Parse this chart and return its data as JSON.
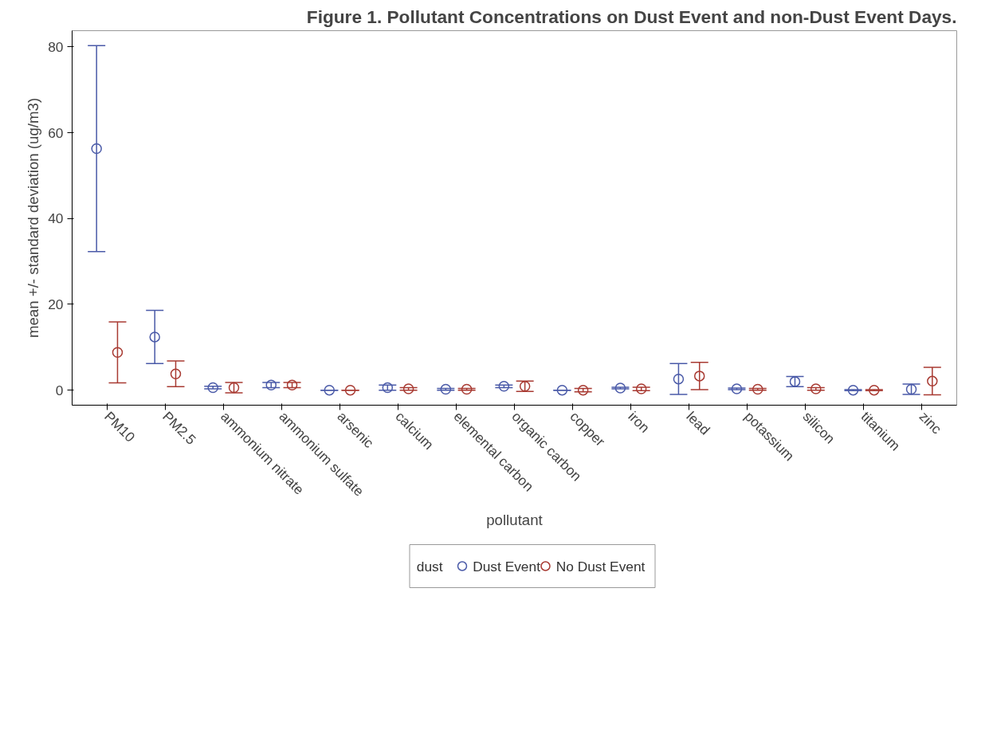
{
  "chart_data": {
    "type": "scatter",
    "title": "Figure 1. Pollutant Concentrations on Dust Event and non-Dust Event Days.",
    "xlabel": "pollutant",
    "ylabel": "mean +/- standard deviation (ug/m3)",
    "legend_title": "dust",
    "categories": [
      "PM10",
      "PM2.5",
      "ammonium nitrate",
      "ammonium sulfate",
      "arsenic",
      "calcium",
      "elemental carbon",
      "organic carbon",
      "copper",
      "iron",
      "lead",
      "potassium",
      "silicon",
      "titanium",
      "zinc"
    ],
    "series": [
      {
        "name": "Dust Event",
        "color": "#4a5aa8",
        "values": [
          56.3,
          12.4,
          0.6,
          1.2,
          0,
          0.6,
          0.2,
          0.9,
          0,
          0.5,
          2.6,
          0.3,
          2.0,
          0,
          0.2
        ],
        "errors": [
          24,
          6.2,
          0.3,
          0.6,
          0,
          0.6,
          0.2,
          0.3,
          0,
          0.2,
          3.6,
          0.2,
          1.2,
          0.1,
          1.2
        ]
      },
      {
        "name": "No Dust Event",
        "color": "#a83a32",
        "values": [
          8.8,
          3.8,
          0.6,
          1.2,
          0,
          0.3,
          0.2,
          0.9,
          0,
          0.3,
          3.3,
          0.2,
          0.3,
          0,
          2.1
        ],
        "errors": [
          7.1,
          3.0,
          1.2,
          0.6,
          0,
          0.3,
          0.2,
          1.2,
          0.4,
          0.4,
          3.2,
          0.2,
          0.3,
          0.1,
          3.2
        ]
      }
    ],
    "ylim": [
      -3.5,
      83.8
    ],
    "yticks": [
      0,
      20,
      40,
      60,
      80
    ],
    "grid": false,
    "legend": "bottom",
    "marker": "circle"
  }
}
